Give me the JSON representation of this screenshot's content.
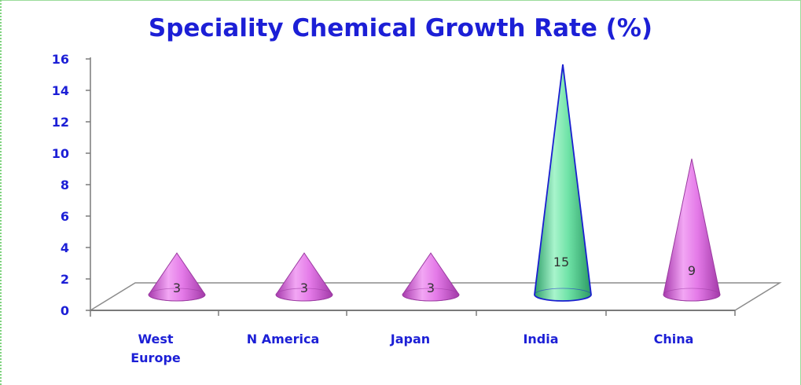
{
  "chart_data": {
    "type": "bar",
    "title": "Speciality Chemical Growth Rate (%)",
    "categories": [
      "West Europe",
      "N America",
      "Japan",
      "India",
      "China"
    ],
    "values": [
      3,
      3,
      3,
      15,
      9
    ],
    "data_labels": [
      "3",
      "3",
      "3",
      "15",
      "9"
    ],
    "yticks": [
      "0",
      "2",
      "4",
      "6",
      "8",
      "10",
      "12",
      "14",
      "16"
    ],
    "ylim": [
      0,
      16
    ],
    "grid": false,
    "legend": "none",
    "colors": {
      "default": "#e070e6",
      "highlight": "#5ee0a0",
      "highlight_outline": "#1a1fd0",
      "axis_text": "#1c1fd6"
    },
    "highlight_index": 3
  }
}
